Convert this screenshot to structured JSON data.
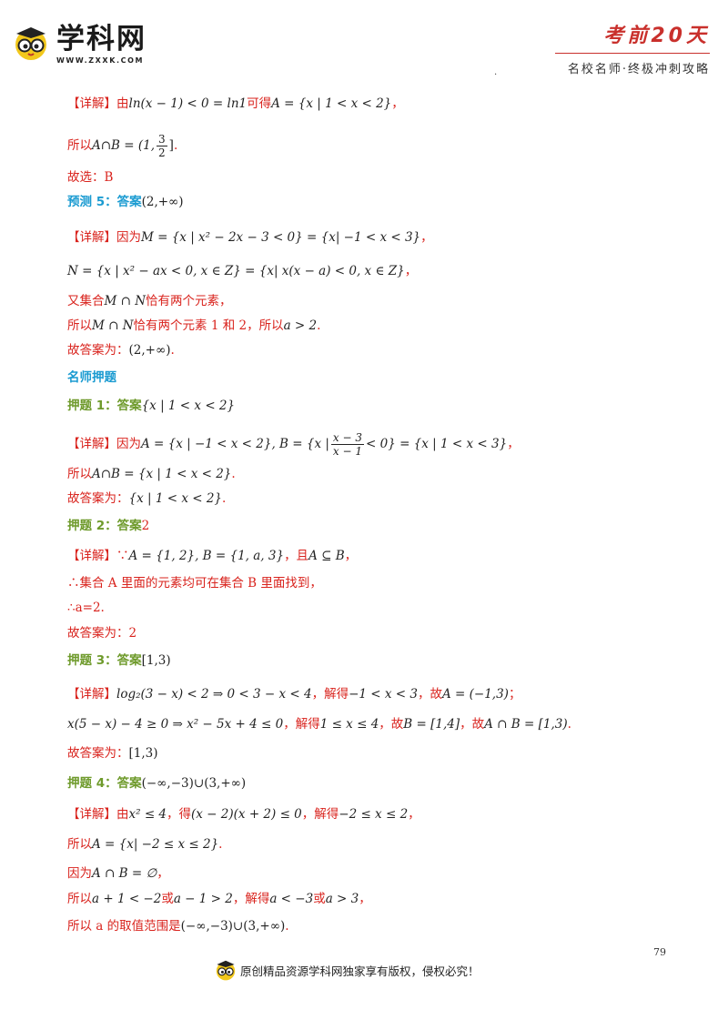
{
  "header": {
    "logo_text": "学科网",
    "logo_url": "WWW.ZXXK.COM",
    "brand_title": "考前20天",
    "brand_sub": "名校名师·终极冲刺攻略"
  },
  "lines": [
    {
      "label": "【详解】",
      "t1": "由",
      "m1": "ln(x − 1) < 0 = ln1",
      "t2": "可得",
      "m2": "A = {x | 1 < x < 2}",
      "t3": "，"
    },
    {
      "t1": "所以",
      "m1": "A∩B = (1,",
      "frac": {
        "num": "3",
        "den": "2"
      },
      "m2": "]",
      "t2": "."
    },
    {
      "t1": "故选：B"
    },
    {
      "head": "预测 5：答案",
      "m1": "(2,+∞)"
    },
    {
      "label": "【详解】",
      "t1": "因为",
      "m1": "M = {x | x² − 2x − 3 < 0} = {x| −1 < x < 3}",
      "t2": "，"
    },
    {
      "m1": "N = {x | x² − ax < 0, x ∈ Z} = {x| x(x − a) < 0, x ∈ Z}",
      "t1": "，"
    },
    {
      "t1": "又集合",
      "m1": "M ∩ N",
      "t2": "恰有两个元素，"
    },
    {
      "t1": "所以",
      "m1": "M ∩ N",
      "t2": "恰有两个元素 1 和 2，所以",
      "m2": "a > 2",
      "t3": "."
    },
    {
      "t1": "故答案为：",
      "m1": "(2,+∞)",
      "t2": "."
    },
    {
      "head": "名师押题"
    },
    {
      "head": "押题 1：答案",
      "m1": "{x | 1 < x < 2}"
    },
    {
      "label": "【详解】",
      "t1": "因为",
      "m1": "A = {x | −1 < x < 2}, B = {x |",
      "frac": {
        "num": "x − 3",
        "den": "x − 1"
      },
      "m2": "< 0} = {x | 1 < x < 3}",
      "t2": "，"
    },
    {
      "t1": "所以",
      "m1": "A∩B = {x | 1 < x < 2}",
      "t2": "."
    },
    {
      "t1": "故答案为：",
      "m1": "{x | 1 < x < 2}",
      "t2": "."
    },
    {
      "head": "押题 2：答案",
      "h2": "2"
    },
    {
      "label": "【详解】",
      "t1": "∵",
      "m1": "A = {1, 2}, B = {1, a, 3}",
      "t2": "，且",
      "m2": "A ⊆ B",
      "t3": "，"
    },
    {
      "t1": "∴集合 A 里面的元素均可在集合 B 里面找到，"
    },
    {
      "t1": "∴a=2."
    },
    {
      "t1": "故答案为：2"
    },
    {
      "head": "押题 3：答案",
      "m1": "[1,3)"
    },
    {
      "label": "【详解】",
      "m1": "log₂(3 − x) < 2 ⇒ 0 < 3 − x < 4",
      "t1": "，解得",
      "m2": "−1 < x < 3",
      "t2": "，故",
      "m3": "A = (−1,3)",
      "t3": "；"
    },
    {
      "m1": "x(5 − x) − 4 ≥ 0 ⇒ x² − 5x + 4 ≤ 0",
      "t1": "，解得",
      "m2": "1 ≤ x ≤ 4",
      "t2": "，故",
      "m3": "B = [1,4]",
      "t3": "，故",
      "m4": "A ∩ B = [1,3)",
      "t4": "."
    },
    {
      "t1": "故答案为：",
      "m1": "[1,3)"
    },
    {
      "head": "押题 4：答案",
      "m1": "(−∞,−3)∪(3,+∞)"
    },
    {
      "label": "【详解】",
      "t1": "由",
      "m1": "x² ≤ 4",
      "t2": "，得",
      "m2": "(x − 2)(x + 2) ≤ 0",
      "t3": "，解得",
      "m3": "−2 ≤ x ≤ 2",
      "t4": "，"
    },
    {
      "t1": "所以",
      "m1": "A = {x| −2 ≤ x ≤ 2}",
      "t2": "."
    },
    {
      "t1": "因为",
      "m1": "A ∩ B = ∅",
      "t2": "，"
    },
    {
      "t1": "所以",
      "m1": "a + 1 < −2",
      "t2": "或",
      "m2": "a − 1 > 2",
      "t3": "，解得",
      "m3": "a < −3",
      "t4": "或",
      "m4": "a > 3",
      "t5": "，"
    },
    {
      "t1": "所以 a 的取值范围是",
      "m1": "(−∞,−3)∪(3,+∞)",
      "t2": "."
    }
  ],
  "page_number": "79",
  "footer_text": "原创精品资源学科网独家享有版权，侵权必究！"
}
